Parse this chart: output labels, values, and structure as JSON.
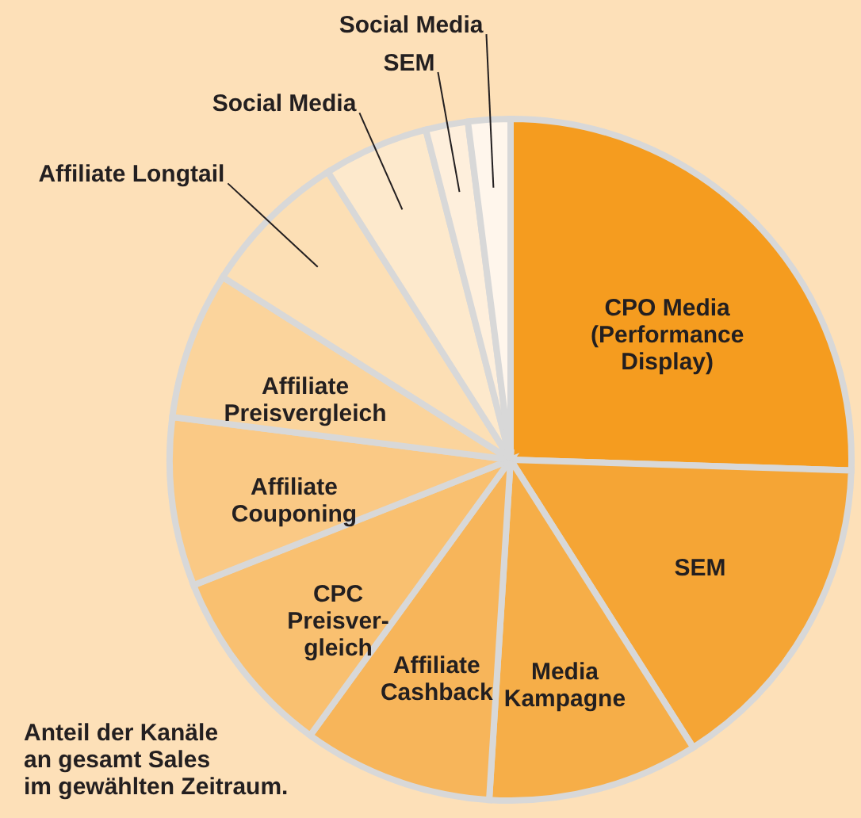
{
  "chart_data": {
    "type": "pie",
    "categories": [
      "CPO Media\n(Performance\nDisplay)",
      "SEM",
      "Media\nKampagne",
      "Affiliate\nCashback",
      "CPC\nPreisver-\ngleich",
      "Affiliate\nCouponing",
      "Affiliate\nPreisvergleich",
      "Affiliate Longtail",
      "Social Media",
      "SEM",
      "Social Media"
    ],
    "values": [
      25.5,
      15.5,
      10,
      9,
      9,
      8,
      7,
      7,
      5,
      2,
      2
    ],
    "colors": [
      "#f59c1f",
      "#f5a535",
      "#f6ae48",
      "#f7b55a",
      "#f9c070",
      "#fac985",
      "#fbd49c",
      "#fcdfb5",
      "#fde9cc",
      "#feefdc",
      "#fff6ec"
    ],
    "annotations": [
      "Anteil der Kanäle\nan gesamt Sales\nim gewählten Zeitraum."
    ]
  }
}
